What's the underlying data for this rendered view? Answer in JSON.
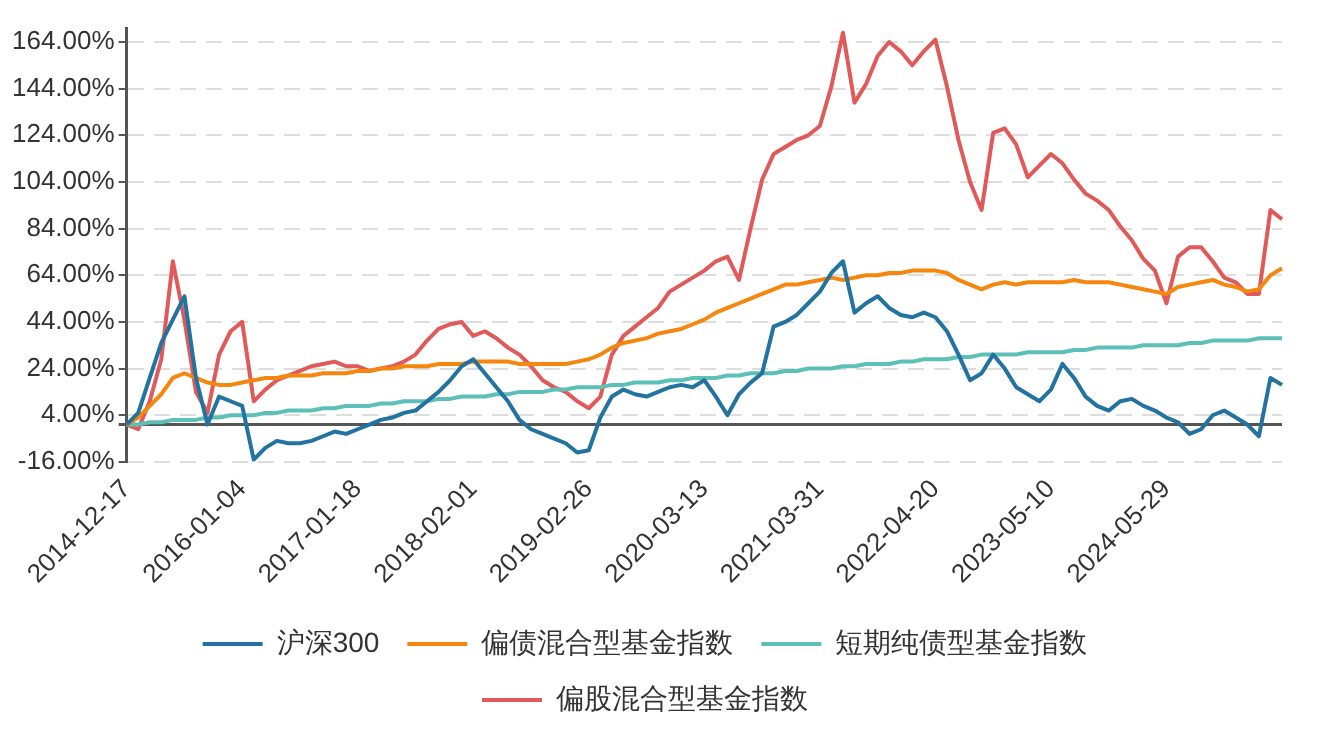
{
  "chart_data": {
    "type": "line",
    "categories": [
      "2014-12-17",
      null,
      null,
      null,
      null,
      null,
      null,
      null,
      null,
      null,
      "2016-01-04",
      null,
      null,
      null,
      null,
      null,
      null,
      null,
      null,
      null,
      "2017-01-18",
      null,
      null,
      null,
      null,
      null,
      null,
      null,
      null,
      null,
      "2018-02-01",
      null,
      null,
      null,
      null,
      null,
      null,
      null,
      null,
      null,
      "2019-02-26",
      null,
      null,
      null,
      null,
      null,
      null,
      null,
      null,
      null,
      "2020-03-13",
      null,
      null,
      null,
      null,
      null,
      null,
      null,
      null,
      null,
      "2021-03-31",
      null,
      null,
      null,
      null,
      null,
      null,
      null,
      null,
      null,
      "2022-04-20",
      null,
      null,
      null,
      null,
      null,
      null,
      null,
      null,
      null,
      "2023-05-10",
      null,
      null,
      null,
      null,
      null,
      null,
      null,
      null,
      null,
      "2024-05-29",
      null,
      null,
      null,
      null,
      null,
      null,
      null,
      null,
      null,
      null
    ],
    "series": [
      {
        "name": "沪深300",
        "color": "#22739f",
        "values": [
          0,
          5,
          20,
          35,
          45,
          55,
          20,
          0,
          12,
          10,
          8,
          -15,
          -10,
          -7,
          -8,
          -8,
          -7,
          -5,
          -3,
          -4,
          -2,
          0,
          2,
          3,
          5,
          6,
          10,
          14,
          19,
          25,
          28,
          22,
          16,
          10,
          2,
          -2,
          -4,
          -6,
          -8,
          -12,
          -11,
          3,
          12,
          15,
          13,
          12,
          14,
          16,
          17,
          16,
          19,
          12,
          4,
          13,
          18,
          22,
          42,
          44,
          47,
          52,
          57,
          65,
          70,
          48,
          52,
          55,
          50,
          47,
          46,
          48,
          46,
          40,
          30,
          19,
          22,
          30,
          24,
          16,
          13,
          10,
          15,
          26,
          20,
          12,
          8,
          6,
          10,
          11,
          8,
          6,
          3,
          1,
          -4,
          -2,
          4,
          6,
          3,
          0,
          -5,
          20,
          17
        ]
      },
      {
        "name": "偏债混合型基金指数",
        "color": "#f5870f",
        "values": [
          0,
          3,
          8,
          13,
          20,
          22,
          20,
          18,
          17,
          17,
          18,
          19,
          20,
          20,
          21,
          21,
          21,
          22,
          22,
          22,
          23,
          23,
          24,
          24,
          25,
          25,
          25,
          26,
          26,
          26,
          27,
          27,
          27,
          27,
          26,
          26,
          26,
          26,
          26,
          27,
          28,
          30,
          33,
          35,
          36,
          37,
          39,
          40,
          41,
          43,
          45,
          48,
          50,
          52,
          54,
          56,
          58,
          60,
          60,
          61,
          62,
          63,
          62,
          63,
          64,
          64,
          65,
          65,
          66,
          66,
          66,
          65,
          62,
          60,
          58,
          60,
          61,
          60,
          61,
          61,
          61,
          61,
          62,
          61,
          61,
          61,
          60,
          59,
          58,
          57,
          56,
          59,
          60,
          61,
          62,
          60,
          59,
          57,
          58,
          64,
          67
        ]
      },
      {
        "name": "短期纯债型基金指数",
        "color": "#5cc0b8",
        "values": [
          0,
          0,
          1,
          1,
          2,
          2,
          2,
          3,
          3,
          4,
          4,
          4,
          5,
          5,
          6,
          6,
          6,
          7,
          7,
          8,
          8,
          8,
          9,
          9,
          10,
          10,
          10,
          11,
          11,
          12,
          12,
          12,
          13,
          13,
          14,
          14,
          14,
          15,
          15,
          16,
          16,
          16,
          17,
          17,
          18,
          18,
          18,
          19,
          19,
          20,
          20,
          20,
          21,
          21,
          22,
          22,
          22,
          23,
          23,
          24,
          24,
          24,
          25,
          25,
          26,
          26,
          26,
          27,
          27,
          28,
          28,
          28,
          29,
          29,
          30,
          30,
          30,
          30,
          31,
          31,
          31,
          31,
          32,
          32,
          33,
          33,
          33,
          33,
          34,
          34,
          34,
          34,
          35,
          35,
          36,
          36,
          36,
          36,
          37,
          37,
          37
        ]
      },
      {
        "name": "偏股混合型基金指数",
        "color": "#e05a5a",
        "values": [
          0,
          -2,
          10,
          28,
          70,
          45,
          14,
          5,
          30,
          40,
          44,
          10,
          15,
          19,
          21,
          23,
          25,
          26,
          27,
          25,
          25,
          23,
          24,
          25,
          27,
          30,
          36,
          41,
          43,
          44,
          38,
          40,
          37,
          33,
          30,
          25,
          19,
          16,
          14,
          10,
          7,
          12,
          30,
          38,
          42,
          46,
          50,
          57,
          60,
          63,
          66,
          70,
          72,
          62,
          84,
          105,
          116,
          119,
          122,
          124,
          128,
          145,
          168,
          138,
          146,
          158,
          164,
          160,
          154,
          160,
          165,
          145,
          122,
          104,
          92,
          125,
          127,
          120,
          106,
          111,
          116,
          112,
          105,
          99,
          96,
          92,
          85,
          79,
          71,
          66,
          52,
          72,
          76,
          76,
          70,
          63,
          61,
          56,
          56,
          92,
          88
        ]
      }
    ],
    "ylim": [
      -16,
      170
    ],
    "yticks": [
      {
        "value": -16,
        "label": "-16.00%"
      },
      {
        "value": 0,
        "label": null
      },
      {
        "value": 4,
        "label": "4.00%"
      },
      {
        "value": 24,
        "label": "24.00%"
      },
      {
        "value": 44,
        "label": "44.00%"
      },
      {
        "value": 64,
        "label": "64.00%"
      },
      {
        "value": 84,
        "label": "84.00%"
      },
      {
        "value": 104,
        "label": "104.00%"
      },
      {
        "value": 124,
        "label": "124.00%"
      },
      {
        "value": 144,
        "label": "144.00%"
      },
      {
        "value": 164,
        "label": "164.00%"
      }
    ],
    "grid": "y",
    "legend": "bottom",
    "marker": "none",
    "line_style": "solid"
  }
}
